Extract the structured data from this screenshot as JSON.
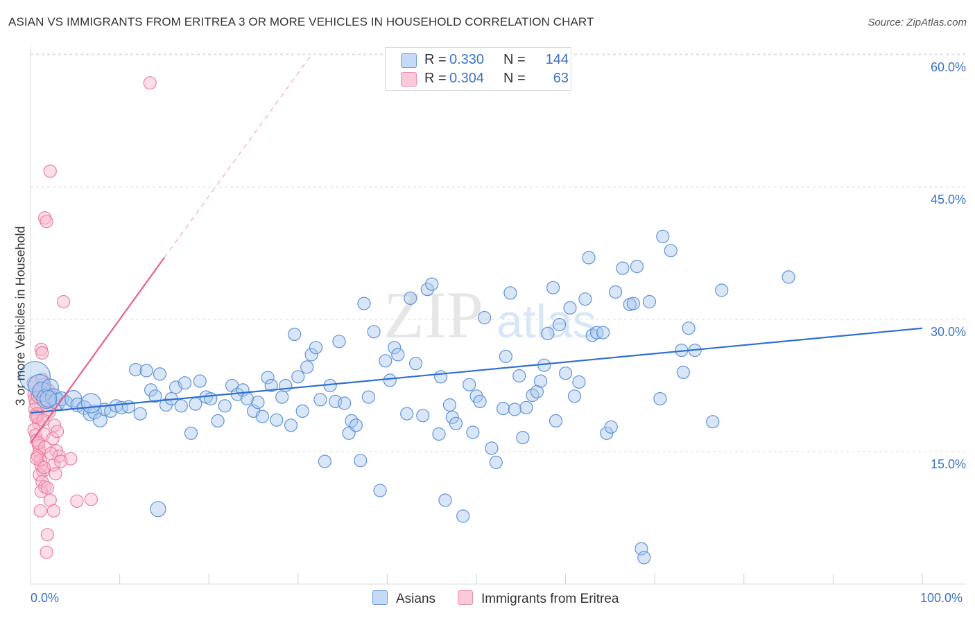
{
  "header": {
    "title": "ASIAN VS IMMIGRANTS FROM ERITREA 3 OR MORE VEHICLES IN HOUSEHOLD CORRELATION CHART",
    "source": "Source: ZipAtlas.com"
  },
  "legend": {
    "asians": {
      "r_label": "R =",
      "r_value": "0.330",
      "n_label": "N =",
      "n_value": "144"
    },
    "eritrea": {
      "r_label": "R =",
      "r_value": "0.304",
      "n_label": "N =",
      "n_value": "63"
    }
  },
  "watermark": {
    "zip": "ZIP",
    "atlas": "atlas"
  },
  "colors": {
    "asians_fill": "#a8c8f0",
    "asians_stroke": "#5f93d8",
    "asians_line": "#2f6fd0",
    "eritrea_fill": "#f8b6cb",
    "eritrea_stroke": "#ec7fa1",
    "eritrea_line": "#e8608c",
    "axis_text": "#3b73c6",
    "grid": "#dddddd"
  },
  "chart_data": {
    "type": "scatter",
    "title": "ASIAN VS IMMIGRANTS FROM ERITREA 3 OR MORE VEHICLES IN HOUSEHOLD CORRELATION CHART",
    "xlabel": "",
    "ylabel": "3 or more Vehicles in Household",
    "x_unit": "percent",
    "xlim": [
      0,
      100
    ],
    "ylim": [
      0,
      62
    ],
    "x_tick_labels": [
      "0.0%",
      "100.0%"
    ],
    "y_ticks": [
      15,
      30,
      45,
      60
    ],
    "y_tick_labels": [
      "15.0%",
      "30.0%",
      "45.0%",
      "60.0%"
    ],
    "grid": "horizontal dashed",
    "legend_position": "top-center",
    "series": [
      {
        "name": "Asians",
        "color": "#5f93d8",
        "r": 0.33,
        "n": 144,
        "trend": {
          "x": [
            0,
            100
          ],
          "y": [
            19.4,
            29.0
          ],
          "dashed_extension": false
        },
        "points": [
          [
            0.5,
            23.5,
            22
          ],
          [
            1.0,
            22.5,
            16
          ],
          [
            1.3,
            21.8,
            14
          ],
          [
            1.8,
            21.0,
            14
          ],
          [
            2.2,
            22.3,
            12
          ],
          [
            2.6,
            21.2,
            12
          ],
          [
            3.0,
            20.7,
            12
          ],
          [
            3.5,
            21.0,
            10
          ],
          [
            4.0,
            20.5,
            10
          ],
          [
            4.8,
            21.0,
            12
          ],
          [
            5.3,
            20.3,
            10
          ],
          [
            6.0,
            20.0,
            10
          ],
          [
            6.7,
            19.3,
            10
          ],
          [
            7.2,
            19.5,
            10
          ],
          [
            7.8,
            18.6,
            10
          ],
          [
            8.3,
            19.8,
            9
          ],
          [
            9.0,
            19.6,
            9
          ],
          [
            9.6,
            20.2,
            9
          ],
          [
            10.2,
            20.0,
            9
          ],
          [
            11.0,
            20.1,
            9
          ],
          [
            11.8,
            24.3,
            9
          ],
          [
            12.3,
            19.3,
            9
          ],
          [
            13.0,
            24.2,
            9
          ],
          [
            13.5,
            22.0,
            9
          ],
          [
            14.0,
            21.3,
            9
          ],
          [
            14.5,
            23.8,
            9
          ],
          [
            15.2,
            20.3,
            9
          ],
          [
            15.8,
            21.0,
            9
          ],
          [
            16.3,
            22.3,
            9
          ],
          [
            16.9,
            20.2,
            9
          ],
          [
            17.3,
            22.8,
            9
          ],
          [
            18.0,
            17.1,
            9
          ],
          [
            18.5,
            20.4,
            9
          ],
          [
            19.0,
            23.0,
            9
          ],
          [
            19.7,
            21.2,
            9
          ],
          [
            20.2,
            21.0,
            9
          ],
          [
            21.0,
            18.5,
            9
          ],
          [
            21.8,
            20.2,
            9
          ],
          [
            22.6,
            22.5,
            9
          ],
          [
            23.2,
            21.5,
            9
          ],
          [
            23.8,
            22.0,
            9
          ],
          [
            24.3,
            21.0,
            9
          ],
          [
            25.0,
            19.6,
            9
          ],
          [
            25.5,
            20.6,
            9
          ],
          [
            26.0,
            19.0,
            9
          ],
          [
            26.6,
            23.4,
            9
          ],
          [
            27.0,
            22.5,
            9
          ],
          [
            27.6,
            18.6,
            9
          ],
          [
            28.2,
            21.2,
            9
          ],
          [
            28.6,
            22.5,
            9
          ],
          [
            29.2,
            18.0,
            9
          ],
          [
            29.6,
            28.3,
            9
          ],
          [
            30.0,
            23.5,
            9
          ],
          [
            30.5,
            19.6,
            9
          ],
          [
            31.0,
            24.6,
            9
          ],
          [
            31.5,
            26.0,
            9
          ],
          [
            32.0,
            26.8,
            9
          ],
          [
            32.5,
            20.9,
            9
          ],
          [
            33.0,
            13.9,
            9
          ],
          [
            33.6,
            22.5,
            9
          ],
          [
            34.2,
            20.7,
            9
          ],
          [
            34.6,
            27.5,
            9
          ],
          [
            35.2,
            20.5,
            9
          ],
          [
            35.7,
            17.1,
            9
          ],
          [
            36.0,
            18.5,
            9
          ],
          [
            36.5,
            18.0,
            9
          ],
          [
            37.0,
            14.0,
            9
          ],
          [
            37.4,
            31.8,
            9
          ],
          [
            37.9,
            21.2,
            9
          ],
          [
            38.5,
            28.6,
            9
          ],
          [
            39.2,
            10.6,
            9
          ],
          [
            39.8,
            25.3,
            9
          ],
          [
            40.3,
            23.1,
            9
          ],
          [
            40.8,
            26.8,
            9
          ],
          [
            41.2,
            26.0,
            9
          ],
          [
            42.2,
            19.3,
            9
          ],
          [
            42.6,
            32.4,
            9
          ],
          [
            43.2,
            25.0,
            9
          ],
          [
            44.0,
            19.1,
            9
          ],
          [
            44.5,
            33.4,
            9
          ],
          [
            45.0,
            34.0,
            9
          ],
          [
            45.8,
            17.0,
            9
          ],
          [
            46.0,
            23.5,
            9
          ],
          [
            46.5,
            9.5,
            9
          ],
          [
            47.0,
            20.3,
            9
          ],
          [
            47.3,
            18.9,
            9
          ],
          [
            47.7,
            18.2,
            9
          ],
          [
            48.5,
            7.7,
            9
          ],
          [
            49.2,
            22.6,
            9
          ],
          [
            49.6,
            17.2,
            9
          ],
          [
            50.0,
            21.3,
            9
          ],
          [
            50.4,
            20.7,
            9
          ],
          [
            50.9,
            30.2,
            9
          ],
          [
            51.7,
            15.4,
            9
          ],
          [
            52.2,
            13.8,
            9
          ],
          [
            53.0,
            19.9,
            9
          ],
          [
            53.3,
            25.8,
            9
          ],
          [
            53.8,
            33.0,
            9
          ],
          [
            54.3,
            19.8,
            9
          ],
          [
            54.8,
            23.6,
            9
          ],
          [
            55.2,
            16.6,
            9
          ],
          [
            55.6,
            20.0,
            9
          ],
          [
            56.3,
            21.4,
            9
          ],
          [
            56.8,
            21.8,
            9
          ],
          [
            57.2,
            23.0,
            9
          ],
          [
            57.6,
            24.8,
            9
          ],
          [
            58.0,
            28.4,
            9
          ],
          [
            58.6,
            33.6,
            9
          ],
          [
            58.9,
            18.5,
            9
          ],
          [
            59.3,
            29.4,
            9
          ],
          [
            60.0,
            23.9,
            9
          ],
          [
            60.5,
            31.3,
            9
          ],
          [
            61.0,
            21.3,
            9
          ],
          [
            61.5,
            22.9,
            9
          ],
          [
            62.2,
            32.3,
            9
          ],
          [
            62.6,
            37.0,
            9
          ],
          [
            63.0,
            28.2,
            9
          ],
          [
            63.5,
            28.5,
            9
          ],
          [
            64.2,
            28.5,
            9
          ],
          [
            64.6,
            17.1,
            9
          ],
          [
            65.1,
            17.8,
            9
          ],
          [
            65.6,
            33.1,
            9
          ],
          [
            66.4,
            35.8,
            9
          ],
          [
            67.2,
            31.7,
            9
          ],
          [
            67.6,
            31.8,
            9
          ],
          [
            68.0,
            36.0,
            9
          ],
          [
            68.5,
            4.0,
            9
          ],
          [
            68.8,
            3.0,
            9
          ],
          [
            69.4,
            32.0,
            9
          ],
          [
            70.6,
            21.0,
            9
          ],
          [
            70.9,
            39.4,
            9
          ],
          [
            71.8,
            37.8,
            9
          ],
          [
            73.0,
            26.5,
            9
          ],
          [
            73.2,
            24.0,
            9
          ],
          [
            73.8,
            29.0,
            9
          ],
          [
            74.5,
            26.5,
            9
          ],
          [
            76.5,
            18.4,
            9
          ],
          [
            77.5,
            33.3,
            9
          ],
          [
            85.0,
            34.8,
            9
          ],
          [
            14.3,
            8.5,
            11
          ],
          [
            6.8,
            20.5,
            14
          ],
          [
            2.0,
            21.0,
            12
          ]
        ]
      },
      {
        "name": "Immigrants from Eritrea",
        "color": "#ec7fa1",
        "r": 0.304,
        "n": 63,
        "trend": {
          "x": [
            0,
            15
          ],
          "y": [
            16.0,
            37.0
          ],
          "dashed_extension": {
            "x": [
              15,
              31.5
            ],
            "y": [
              37.0,
              60.0
            ]
          }
        },
        "points": [
          [
            0.3,
            22.8,
            9
          ],
          [
            0.4,
            21.5,
            9
          ],
          [
            0.5,
            21.0,
            9
          ],
          [
            0.6,
            20.5,
            9
          ],
          [
            0.5,
            19.8,
            9
          ],
          [
            0.7,
            19.3,
            9
          ],
          [
            0.8,
            18.9,
            9
          ],
          [
            0.9,
            18.2,
            9
          ],
          [
            0.4,
            17.5,
            9
          ],
          [
            0.6,
            16.9,
            9
          ],
          [
            0.7,
            16.3,
            9
          ],
          [
            0.9,
            15.7,
            9
          ],
          [
            1.0,
            15.0,
            9
          ],
          [
            0.8,
            14.5,
            9
          ],
          [
            1.1,
            14.0,
            9
          ],
          [
            1.2,
            13.4,
            9
          ],
          [
            1.4,
            12.8,
            9
          ],
          [
            1.0,
            12.4,
            9
          ],
          [
            1.3,
            11.6,
            9
          ],
          [
            1.6,
            11.0,
            9
          ],
          [
            1.2,
            10.5,
            9
          ],
          [
            1.9,
            10.9,
            9
          ],
          [
            2.2,
            9.5,
            9
          ],
          [
            2.6,
            8.3,
            9
          ],
          [
            1.1,
            8.3,
            9
          ],
          [
            1.9,
            5.6,
            9
          ],
          [
            1.8,
            3.6,
            9
          ],
          [
            2.0,
            22.0,
            9
          ],
          [
            2.2,
            21.5,
            9
          ],
          [
            2.4,
            20.5,
            9
          ],
          [
            2.0,
            19.8,
            9
          ],
          [
            1.5,
            17.0,
            9
          ],
          [
            2.5,
            16.5,
            9
          ],
          [
            2.9,
            15.1,
            9
          ],
          [
            3.2,
            14.5,
            9
          ],
          [
            2.6,
            13.5,
            9
          ],
          [
            4.5,
            14.2,
            9
          ],
          [
            5.2,
            9.4,
            9
          ],
          [
            6.8,
            9.6,
            9
          ],
          [
            1.2,
            26.6,
            9
          ],
          [
            1.3,
            26.2,
            9
          ],
          [
            1.6,
            41.5,
            9
          ],
          [
            1.8,
            41.1,
            9
          ],
          [
            2.2,
            46.8,
            9
          ],
          [
            3.7,
            32.0,
            9
          ],
          [
            13.4,
            56.8,
            9
          ],
          [
            1.3,
            23.2,
            9
          ],
          [
            1.5,
            22.6,
            9
          ],
          [
            1.0,
            21.8,
            9
          ],
          [
            0.8,
            21.3,
            9
          ],
          [
            1.7,
            20.8,
            9
          ],
          [
            2.1,
            19.5,
            9
          ],
          [
            0.6,
            19.0,
            9
          ],
          [
            1.4,
            18.6,
            9
          ],
          [
            2.7,
            18.0,
            9
          ],
          [
            3.0,
            17.3,
            9
          ],
          [
            0.9,
            16.0,
            9
          ],
          [
            1.6,
            15.5,
            9
          ],
          [
            2.3,
            14.8,
            9
          ],
          [
            0.7,
            14.2,
            9
          ],
          [
            3.4,
            13.9,
            9
          ],
          [
            1.5,
            13.2,
            9
          ],
          [
            2.8,
            12.5,
            9
          ]
        ]
      }
    ]
  },
  "axes": {
    "x_left_label": "0.0%",
    "x_right_label": "100.0%",
    "y_label": "3 or more Vehicles in Household",
    "y_ticks": {
      "t15": "15.0%",
      "t30": "30.0%",
      "t45": "45.0%",
      "t60": "60.0%"
    }
  },
  "bottom_legend": {
    "asians": "Asians",
    "eritrea": "Immigrants from Eritrea"
  }
}
